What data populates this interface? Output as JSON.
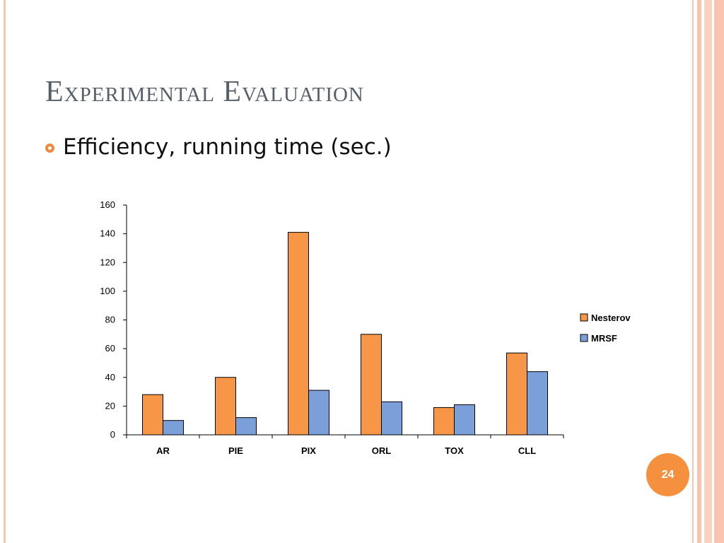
{
  "slide": {
    "title": "Experimental Evaluation",
    "bullet": "Efficiency, running time (sec.)",
    "page_number": "24"
  },
  "colors": {
    "frame": "#f7c5b0",
    "accent": "#f5913e",
    "title": "#56606a"
  },
  "chart_data": {
    "type": "bar",
    "categories": [
      "AR",
      "PIE",
      "PIX",
      "ORL",
      "TOX",
      "CLL"
    ],
    "series": [
      {
        "name": "Nesterov",
        "color": "#f79646",
        "values": [
          28,
          40,
          141,
          70,
          19,
          57
        ]
      },
      {
        "name": "MRSF",
        "color": "#7b9fd8",
        "values": [
          10,
          12,
          31,
          23,
          21,
          44
        ]
      }
    ],
    "ylim": [
      0,
      160
    ],
    "yticks": [
      0,
      20,
      40,
      60,
      80,
      100,
      120,
      140,
      160
    ],
    "legend_position": "right",
    "grid": false
  }
}
